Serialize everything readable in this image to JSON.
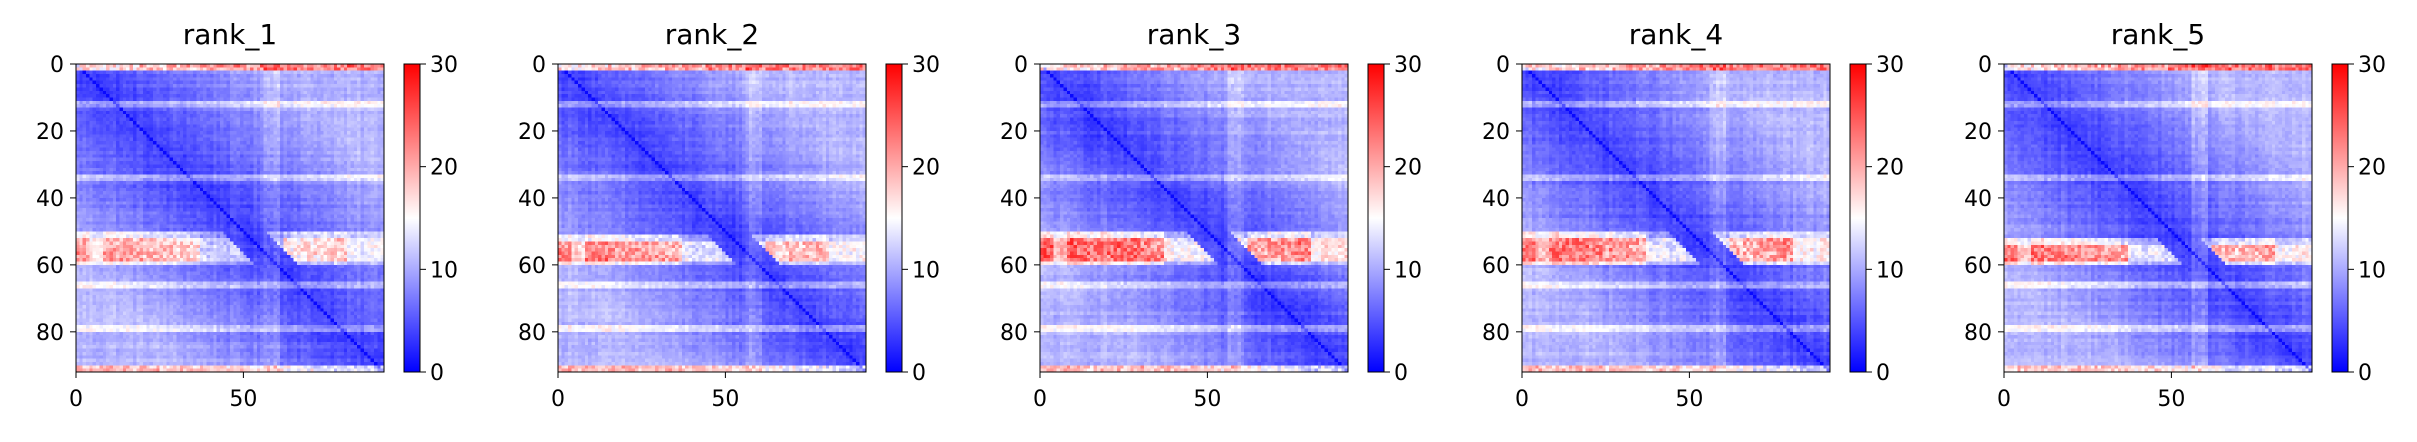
{
  "chart_data": [
    {
      "type": "heatmap",
      "title": "rank_1",
      "n": 92,
      "x_ticks": [
        0,
        50
      ],
      "y_ticks": [
        0,
        20,
        40,
        60,
        80
      ],
      "xlim": [
        0,
        92
      ],
      "ylim": [
        92,
        0
      ],
      "colorbar": {
        "min": 0,
        "max": 30,
        "ticks": [
          0,
          10,
          20,
          30
        ],
        "colormap": [
          "#0000ff",
          "#ffffff",
          "#ff0000"
        ]
      },
      "high_band_rows": [
        52,
        58
      ],
      "high_band_intensity": 0.55
    },
    {
      "type": "heatmap",
      "title": "rank_2",
      "n": 92,
      "x_ticks": [
        0,
        50
      ],
      "y_ticks": [
        0,
        20,
        40,
        60,
        80
      ],
      "xlim": [
        0,
        92
      ],
      "ylim": [
        92,
        0
      ],
      "colorbar": {
        "min": 0,
        "max": 30,
        "ticks": [
          0,
          10,
          20,
          30
        ],
        "colormap": [
          "#0000ff",
          "#ffffff",
          "#ff0000"
        ]
      },
      "high_band_rows": [
        53,
        58
      ],
      "high_band_intensity": 0.62
    },
    {
      "type": "heatmap",
      "title": "rank_3",
      "n": 92,
      "x_ticks": [
        0,
        50
      ],
      "y_ticks": [
        0,
        20,
        40,
        60,
        80
      ],
      "xlim": [
        0,
        92
      ],
      "ylim": [
        92,
        0
      ],
      "colorbar": {
        "min": 0,
        "max": 30,
        "ticks": [
          0,
          10,
          20,
          30
        ],
        "colormap": [
          "#0000ff",
          "#ffffff",
          "#ff0000"
        ]
      },
      "high_band_rows": [
        52,
        58
      ],
      "high_band_intensity": 0.72
    },
    {
      "type": "heatmap",
      "title": "rank_4",
      "n": 92,
      "x_ticks": [
        0,
        50
      ],
      "y_ticks": [
        0,
        20,
        40,
        60,
        80
      ],
      "xlim": [
        0,
        92
      ],
      "ylim": [
        92,
        0
      ],
      "colorbar": {
        "min": 0,
        "max": 30,
        "ticks": [
          0,
          10,
          20,
          30
        ],
        "colormap": [
          "#0000ff",
          "#ffffff",
          "#ff0000"
        ]
      },
      "high_band_rows": [
        52,
        58
      ],
      "high_band_intensity": 0.7
    },
    {
      "type": "heatmap",
      "title": "rank_5",
      "n": 92,
      "x_ticks": [
        0,
        50
      ],
      "y_ticks": [
        0,
        20,
        40,
        60,
        80
      ],
      "xlim": [
        0,
        92
      ],
      "ylim": [
        92,
        0
      ],
      "colorbar": {
        "min": 0,
        "max": 30,
        "ticks": [
          0,
          10,
          20,
          30
        ],
        "colormap": [
          "#0000ff",
          "#ffffff",
          "#ff0000"
        ]
      },
      "high_band_rows": [
        54,
        58
      ],
      "high_band_intensity": 0.66
    }
  ]
}
